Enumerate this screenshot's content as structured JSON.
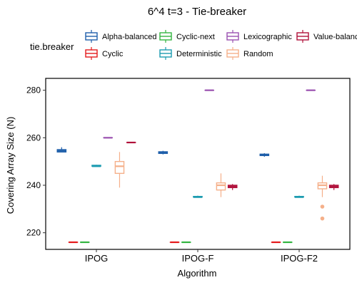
{
  "chart_data": {
    "type": "box",
    "title": "6^4 t=3 - Tie-breaker",
    "xlabel": "Algorithm",
    "ylabel": "Covering Array Size (N)",
    "ylim": [
      213,
      285
    ],
    "yticks": [
      220,
      240,
      260,
      280
    ],
    "grid": false,
    "legend": {
      "title": "tie.breaker",
      "position": "top"
    },
    "categories": [
      "IPOG",
      "IPOG-F",
      "IPOG-F2"
    ],
    "series": [
      {
        "name": "Alpha-balanced",
        "color": "#1f5faa",
        "boxes": [
          {
            "min": 254,
            "q1": 254,
            "median": 254.5,
            "q3": 255,
            "max": 256,
            "outliers": []
          },
          {
            "min": 253,
            "q1": 253.4,
            "median": 253.8,
            "q3": 254.1,
            "max": 254.5,
            "outliers": []
          },
          {
            "min": 252,
            "q1": 252.5,
            "median": 252.8,
            "q3": 253.1,
            "max": 253.5,
            "outliers": []
          }
        ]
      },
      {
        "name": "Cyclic",
        "color": "#e41a1c",
        "boxes": [
          {
            "min": 216,
            "q1": 216,
            "median": 216,
            "q3": 216,
            "max": 216,
            "outliers": []
          },
          {
            "min": 216,
            "q1": 216,
            "median": 216,
            "q3": 216,
            "max": 216,
            "outliers": []
          },
          {
            "min": 216,
            "q1": 216,
            "median": 216,
            "q3": 216,
            "max": 216,
            "outliers": []
          }
        ]
      },
      {
        "name": "Cyclic-next",
        "color": "#33b540",
        "boxes": [
          {
            "min": 216,
            "q1": 216,
            "median": 216,
            "q3": 216,
            "max": 216,
            "outliers": []
          },
          {
            "min": 216,
            "q1": 216,
            "median": 216,
            "q3": 216,
            "max": 216,
            "outliers": []
          },
          {
            "min": 216,
            "q1": 216,
            "median": 216,
            "q3": 216,
            "max": 216,
            "outliers": []
          }
        ]
      },
      {
        "name": "Deterministic",
        "color": "#1b9bb0",
        "boxes": [
          {
            "min": 248,
            "q1": 248,
            "median": 248,
            "q3": 248.4,
            "max": 248.6,
            "outliers": []
          },
          {
            "min": 235,
            "q1": 235,
            "median": 235,
            "q3": 235.3,
            "max": 235.6,
            "outliers": []
          },
          {
            "min": 235,
            "q1": 235,
            "median": 235,
            "q3": 235.3,
            "max": 235.6,
            "outliers": []
          }
        ]
      },
      {
        "name": "Lexicographic",
        "color": "#9a50b0",
        "boxes": [
          {
            "min": 260,
            "q1": 260,
            "median": 260,
            "q3": 260,
            "max": 260,
            "outliers": []
          },
          {
            "min": 280,
            "q1": 280,
            "median": 280,
            "q3": 280,
            "max": 280,
            "outliers": []
          },
          {
            "min": 280,
            "q1": 280,
            "median": 280,
            "q3": 280,
            "max": 280,
            "outliers": []
          }
        ]
      },
      {
        "name": "Random",
        "color": "#f5b08a",
        "boxes": [
          {
            "min": 239,
            "q1": 245,
            "median": 248,
            "q3": 250,
            "max": 254,
            "outliers": []
          },
          {
            "min": 235,
            "q1": 238,
            "median": 240,
            "q3": 241,
            "max": 245,
            "outliers": []
          },
          {
            "min": 235,
            "q1": 238.5,
            "median": 240,
            "q3": 241,
            "max": 244,
            "outliers": [
              231,
              226
            ]
          }
        ]
      },
      {
        "name": "Value-balanced",
        "color": "#b0103a",
        "boxes": [
          {
            "min": 258,
            "q1": 258,
            "median": 258,
            "q3": 258,
            "max": 258,
            "outliers": []
          },
          {
            "min": 238,
            "q1": 239,
            "median": 239.5,
            "q3": 240,
            "max": 240.5,
            "outliers": []
          },
          {
            "min": 238,
            "q1": 239,
            "median": 239.5,
            "q3": 240,
            "max": 240.5,
            "outliers": []
          }
        ]
      }
    ]
  }
}
